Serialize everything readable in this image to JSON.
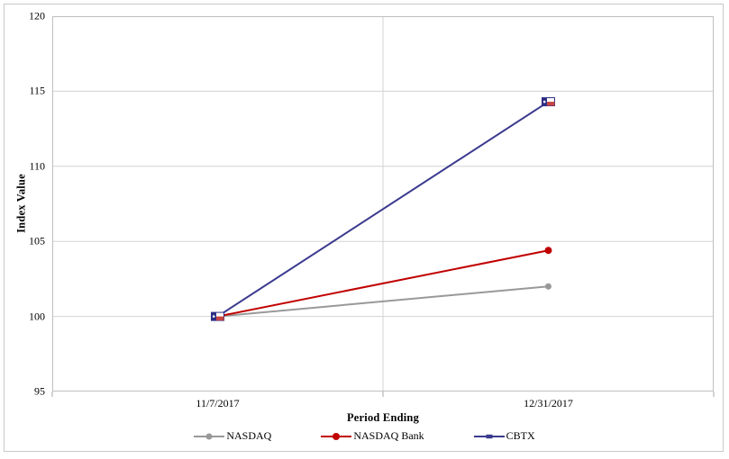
{
  "chart_data": {
    "type": "line",
    "xlabel": "Period Ending",
    "ylabel": "Index Value",
    "categories": [
      "11/7/2017",
      "12/31/2017"
    ],
    "series": [
      {
        "name": "NASDAQ",
        "values": [
          100,
          102.0
        ],
        "color": "#999999",
        "marker": "circle",
        "marker_size": 3.5
      },
      {
        "name": "NASDAQ Bank",
        "values": [
          100,
          104.4
        ],
        "color": "#c00000",
        "marker": "circle",
        "marker_size": 4
      },
      {
        "name": "CBTX",
        "values": [
          100,
          114.3
        ],
        "color": "#3a3a8f",
        "marker": "flag",
        "marker_size": 4.5
      }
    ],
    "ylim": [
      95,
      120
    ],
    "yticks": [
      95,
      100,
      105,
      110,
      115,
      120
    ],
    "grid": true,
    "legend_position": "bottom"
  },
  "colors": {
    "plot_border": "#bfbfbf",
    "gridline": "#d3d3d3",
    "axis_tick": "#a9a9a9",
    "flag_blue": "#2e2e85",
    "flag_red": "#c64545",
    "flag_white": "#ffffff"
  }
}
